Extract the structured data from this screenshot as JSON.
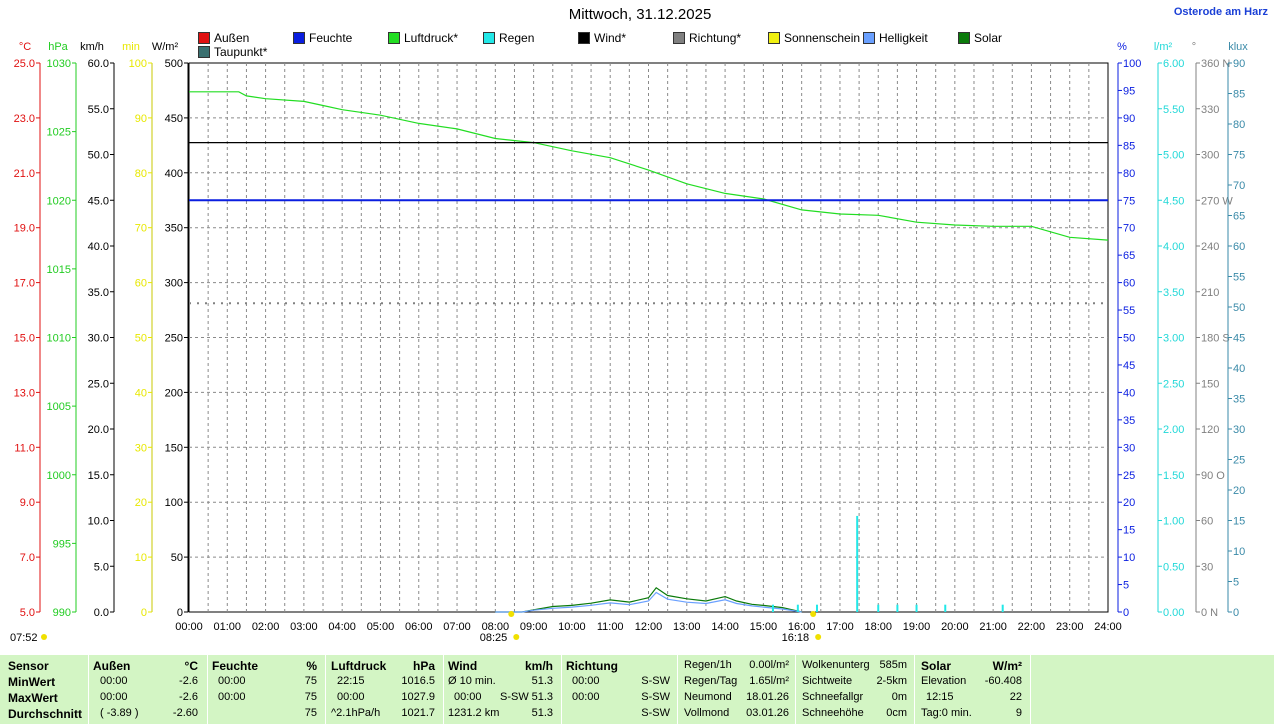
{
  "title": "Mittwoch, 31.12.2025",
  "station": "Osterode am Harz",
  "legend": [
    {
      "label": "Außen",
      "color": "#e01010"
    },
    {
      "label": "Taupunkt*",
      "color": "#3a7070"
    },
    {
      "label": "Feuchte",
      "color": "#0a1ee0"
    },
    {
      "label": "Luftdruck*",
      "color": "#22dd22"
    },
    {
      "label": "Regen",
      "color": "#22e8e8"
    },
    {
      "label": "Wind*",
      "color": "#000000"
    },
    {
      "label": "Richtung*",
      "color": "#808080"
    },
    {
      "label": "Sonnenschein",
      "color": "#f0f010"
    },
    {
      "label": "Helligkeit",
      "color": "#6aa0ff"
    },
    {
      "label": "Solar",
      "color": "#0a7a0a"
    }
  ],
  "axes_left": [
    {
      "unit": "°C",
      "color": "#e01010",
      "ticks": [
        "25.0",
        "23.0",
        "21.0",
        "19.0",
        "17.0",
        "15.0",
        "13.0",
        "11.0",
        "9.0",
        "7.0",
        "5.0"
      ]
    },
    {
      "unit": "hPa",
      "color": "#22cc22",
      "ticks": [
        "1030",
        "1025",
        "1020",
        "1015",
        "1010",
        "1005",
        "1000",
        "995",
        "990"
      ]
    },
    {
      "unit": "km/h",
      "color": "#000000",
      "ticks": [
        "60.0",
        "55.0",
        "50.0",
        "45.0",
        "40.0",
        "35.0",
        "30.0",
        "25.0",
        "20.0",
        "15.0",
        "10.0",
        "5.0",
        "0.0"
      ]
    },
    {
      "unit": "min",
      "color": "#e8e800",
      "ticks": [
        "100",
        "90",
        "80",
        "70",
        "60",
        "50",
        "40",
        "30",
        "20",
        "10",
        "0"
      ]
    },
    {
      "unit": "W/m²",
      "color": "#000000",
      "ticks": [
        "500",
        "450",
        "400",
        "350",
        "300",
        "250",
        "200",
        "150",
        "100",
        "50",
        "0"
      ]
    }
  ],
  "axes_right": [
    {
      "unit": "%",
      "color": "#0a1ee0",
      "ticks": [
        "100",
        "95",
        "90",
        "85",
        "80",
        "75",
        "70",
        "65",
        "60",
        "55",
        "50",
        "45",
        "40",
        "35",
        "30",
        "25",
        "20",
        "15",
        "10",
        "5",
        "0"
      ]
    },
    {
      "unit": "l/m²",
      "color": "#22d8d8",
      "ticks": [
        "6.00",
        "5.50",
        "5.00",
        "4.50",
        "4.00",
        "3.50",
        "3.00",
        "2.50",
        "2.00",
        "1.50",
        "1.00",
        "0.50",
        "0.00"
      ]
    },
    {
      "unit": "°",
      "color": "#808080",
      "ticks": [
        "360 N",
        "330",
        "300",
        "270 W",
        "240",
        "210",
        "180 S",
        "150",
        "120",
        "90 O",
        "60",
        "30",
        "0 N"
      ]
    },
    {
      "unit": "klux",
      "color": "#3a8aa8",
      "ticks": [
        "90",
        "85",
        "80",
        "75",
        "70",
        "65",
        "60",
        "55",
        "50",
        "45",
        "40",
        "35",
        "30",
        "25",
        "20",
        "15",
        "10",
        "5",
        "0"
      ]
    }
  ],
  "x_labels": [
    "00:00",
    "01:00",
    "02:00",
    "03:00",
    "04:00",
    "05:00",
    "06:00",
    "07:00",
    "08:00",
    "09:00",
    "10:00",
    "11:00",
    "12:00",
    "13:00",
    "14:00",
    "15:00",
    "16:00",
    "17:00",
    "18:00",
    "19:00",
    "20:00",
    "21:00",
    "22:00",
    "23:00",
    "24:00"
  ],
  "sun_events": {
    "sunrise": "08:25",
    "sunset": "16:18",
    "marker": "07:52"
  },
  "chart_data": {
    "type": "line",
    "x_range": [
      0,
      24
    ],
    "series": [
      {
        "name": "Luftdruck*",
        "unit": "hPa",
        "color": "#22dd22",
        "x": [
          0,
          1.3,
          1.5,
          2,
          3,
          3.5,
          4,
          5,
          6,
          7,
          8,
          9,
          10,
          11,
          12,
          13,
          14,
          15,
          16,
          17,
          18,
          19,
          20,
          21,
          22,
          23,
          24
        ],
        "y": [
          1027.9,
          1027.9,
          1027.6,
          1027.4,
          1027.2,
          1026.9,
          1026.6,
          1026.2,
          1025.6,
          1025.2,
          1024.5,
          1024.2,
          1023.6,
          1023.1,
          1022.2,
          1021.2,
          1020.5,
          1020.1,
          1019.3,
          1019.0,
          1018.9,
          1018.4,
          1018.2,
          1018.1,
          1018.1,
          1017.3,
          1017.1
        ]
      },
      {
        "name": "Feuchte",
        "unit": "%",
        "color": "#0a1ee0",
        "x": [
          0,
          24
        ],
        "y": [
          75,
          75
        ]
      },
      {
        "name": "Wind*",
        "unit": "km/h",
        "color": "#000000",
        "x": [
          0,
          24
        ],
        "y": [
          51.3,
          51.3
        ]
      },
      {
        "name": "Richtung*",
        "unit": "°",
        "color": "#808080",
        "x": [
          0,
          24
        ],
        "y": [
          202.5,
          202.5
        ]
      },
      {
        "name": "Solar",
        "unit": "W/m²",
        "color": "#0a7a0a",
        "x": [
          8,
          8.7,
          9,
          9.5,
          10,
          10.5,
          11,
          11.5,
          12,
          12.2,
          12.5,
          13,
          13.5,
          14,
          14.3,
          14.7,
          15,
          15.5,
          16
        ],
        "y": [
          0,
          0,
          2,
          5,
          6,
          8,
          11,
          9,
          13,
          22,
          15,
          12,
          10,
          14,
          10,
          7,
          6,
          4,
          0
        ]
      },
      {
        "name": "Helligkeit",
        "unit": "klux",
        "color": "#6aa0ff",
        "x": [
          8,
          8.7,
          9,
          9.5,
          10,
          10.5,
          11,
          11.5,
          12,
          12.2,
          12.5,
          13,
          13.5,
          14,
          14.3,
          14.7,
          15,
          15.5,
          16
        ],
        "y": [
          0,
          0,
          0.3,
          0.6,
          0.8,
          1.1,
          1.5,
          1.2,
          1.8,
          3.2,
          2.1,
          1.6,
          1.4,
          2.0,
          1.4,
          1.0,
          0.8,
          0.5,
          0
        ]
      },
      {
        "name": "Regen",
        "unit": "l/m²",
        "color": "#22e8e8",
        "type": "bar",
        "x": [
          15.25,
          15.9,
          16.4,
          17.45,
          18,
          18.5,
          19,
          19.75,
          21.25
        ],
        "y": [
          0.08,
          0.08,
          0.08,
          1.05,
          0.08,
          0.08,
          0.08,
          0.08,
          0.08
        ]
      }
    ]
  },
  "stats": {
    "sensor": {
      "hdr": "Sensor",
      "rows": [
        "MinWert",
        "MaxWert",
        "Durchschnitt"
      ]
    },
    "aussen": {
      "hdr": "Außen",
      "unit": "°C",
      "times": [
        "00:00",
        "00:00",
        "( -3.89 )"
      ],
      "vals": [
        "-2.6",
        "-2.6",
        "-2.60"
      ]
    },
    "feuchte": {
      "hdr": "Feuchte",
      "unit": "%",
      "times": [
        "00:00",
        "00:00",
        ""
      ],
      "vals": [
        "75",
        "75",
        "75"
      ]
    },
    "druck": {
      "hdr": "Luftdruck",
      "unit": "hPa",
      "times": [
        "22:15",
        "00:00",
        "^2.1hPa/h"
      ],
      "vals": [
        "1016.5",
        "1027.9",
        "1021.7"
      ]
    },
    "wind": {
      "hdr": "Wind",
      "unit": "km/h",
      "times": [
        "Ø 10 min.",
        "00:00",
        "1231.2 km"
      ],
      "mid": [
        "",
        "S-SW",
        ""
      ],
      "vals": [
        "51.3",
        "51.3",
        "51.3"
      ]
    },
    "richtung": {
      "hdr": "Richtung",
      "times": [
        "00:00",
        "00:00",
        ""
      ],
      "vals": [
        "S-SW",
        "S-SW",
        "S-SW"
      ]
    },
    "regen": {
      "labels": [
        "Regen/1h",
        "Regen/Tag",
        "Neumond",
        "Vollmond"
      ],
      "vals": [
        "0.00l/m²",
        "1.65l/m²",
        "18.01.26",
        "03.01.26"
      ]
    },
    "wolken": {
      "labels": [
        "Wolkenunterg",
        "Sichtweite",
        "Schneefallgr",
        "Schneehöhe"
      ],
      "vals": [
        "585m",
        "2-5km",
        "0m",
        "0cm"
      ]
    },
    "solar": {
      "hdr": "Solar",
      "unit": "W/m²",
      "labels": [
        "Elevation",
        "12:15",
        "Tag:0 min."
      ],
      "vals": [
        "-60.408",
        "22",
        "9"
      ]
    }
  }
}
